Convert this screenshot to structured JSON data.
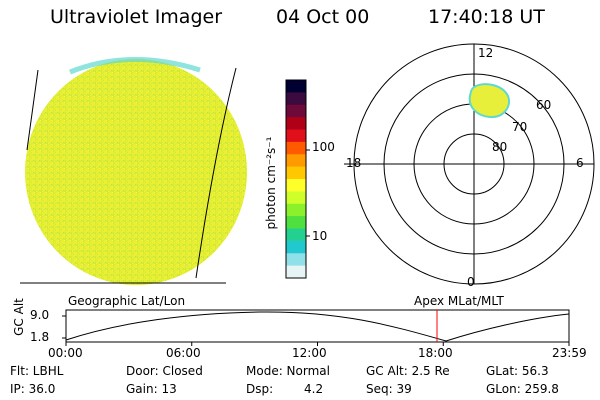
{
  "header": {
    "instrument": "Ultraviolet Imager",
    "date": "04 Oct 00",
    "time": "17:40:18 UT"
  },
  "colorbar": {
    "unit_label": "photon cm⁻²s⁻¹",
    "ticks": [
      "100",
      "10"
    ],
    "colors": [
      "#000033",
      "#3b0a3f",
      "#6e0a3a",
      "#b00018",
      "#e0101a",
      "#ff5a00",
      "#ff9a00",
      "#ffc800",
      "#ffff2a",
      "#cfff2a",
      "#8cf02a",
      "#4fe040",
      "#24d090",
      "#22c8cf",
      "#8fe0e8",
      "#e6f4f6"
    ]
  },
  "polar_plot": {
    "mlt_labels": {
      "top": "12",
      "right": "6",
      "bottom": "0",
      "left": "18"
    },
    "lat_labels": [
      "60",
      "70",
      "80"
    ]
  },
  "timeline": {
    "left_label": "Geographic Lat/Lon",
    "right_label": "Apex MLat/MLT",
    "axis_label": "GC Alt",
    "y_ticks": [
      "9.0",
      "1.8"
    ],
    "x_ticks": [
      "00:00",
      "06:00",
      "12:00",
      "18:00",
      "23:59"
    ],
    "marker_color": "#ff0000"
  },
  "status": {
    "flt": "Flt: LBHL",
    "ip": "IP: 36.0",
    "door": "Door: Closed",
    "gain": "Gain: 13",
    "mode": "Mode: Normal",
    "dsp_label": "Dsp:",
    "dsp_value": "4.2",
    "gcalt": "GC Alt: 2.5 Re",
    "seq": "Seq: 39",
    "glat": "GLat:  56.3",
    "glon": "GLon: 259.8"
  }
}
